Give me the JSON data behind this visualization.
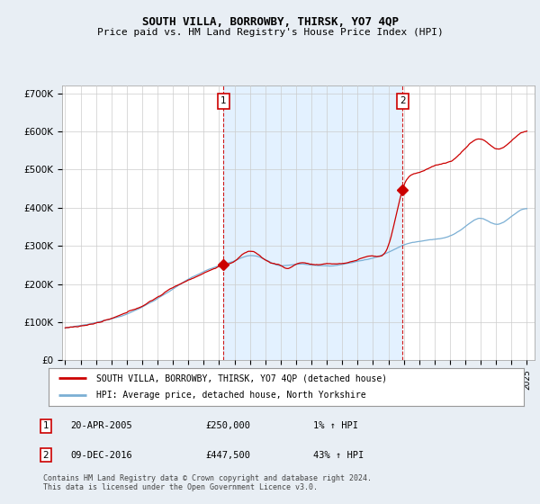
{
  "title": "SOUTH VILLA, BORROWBY, THIRSK, YO7 4QP",
  "subtitle": "Price paid vs. HM Land Registry's House Price Index (HPI)",
  "ylabel_ticks": [
    "£0",
    "£100K",
    "£200K",
    "£300K",
    "£400K",
    "£500K",
    "£600K",
    "£700K"
  ],
  "ytick_values": [
    0,
    100000,
    200000,
    300000,
    400000,
    500000,
    600000,
    700000
  ],
  "ylim": [
    0,
    720000
  ],
  "xlim_start": 1994.8,
  "xlim_end": 2025.5,
  "xticks": [
    1995,
    1996,
    1997,
    1998,
    1999,
    2000,
    2001,
    2002,
    2003,
    2004,
    2005,
    2006,
    2007,
    2008,
    2009,
    2010,
    2011,
    2012,
    2013,
    2014,
    2015,
    2016,
    2017,
    2018,
    2019,
    2020,
    2021,
    2022,
    2023,
    2024,
    2025
  ],
  "hpi_color": "#7bafd4",
  "price_color": "#cc0000",
  "shade_color": "#ddeeff",
  "vline1_x": 2005.29,
  "vline2_x": 2016.92,
  "sale1_date": "20-APR-2005",
  "sale1_price": "£250,000",
  "sale1_hpi": "1% ↑ HPI",
  "sale1_value": 250000,
  "sale2_date": "09-DEC-2016",
  "sale2_price": "£447,500",
  "sale2_hpi": "43% ↑ HPI",
  "sale2_value": 447500,
  "legend1": "SOUTH VILLA, BORROWBY, THIRSK, YO7 4QP (detached house)",
  "legend2": "HPI: Average price, detached house, North Yorkshire",
  "footnote": "Contains HM Land Registry data © Crown copyright and database right 2024.\nThis data is licensed under the Open Government Licence v3.0.",
  "bg_color": "#e8eef4",
  "plot_bg_color": "#ffffff",
  "grid_color": "#cccccc",
  "title_fontsize": 9,
  "subtitle_fontsize": 8
}
